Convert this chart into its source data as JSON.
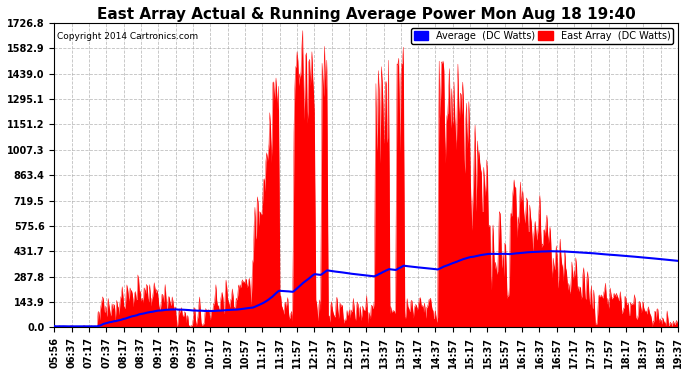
{
  "title": "East Array Actual & Running Average Power Mon Aug 18 19:40",
  "copyright": "Copyright 2014 Cartronics.com",
  "legend_avg": "Average  (DC Watts)",
  "legend_east": "East Array  (DC Watts)",
  "ymax": 1726.8,
  "yticks": [
    0.0,
    143.9,
    287.8,
    431.7,
    575.6,
    719.5,
    863.4,
    1007.3,
    1151.2,
    1295.1,
    1439.0,
    1582.9,
    1726.8
  ],
  "background_color": "#ffffff",
  "grid_color": "#b0b0b0",
  "fill_color": "#ff0000",
  "avg_line_color": "#0000ff",
  "title_fontsize": 11,
  "tick_fontsize": 7,
  "xtick_labels": [
    "05:56",
    "06:37",
    "07:17",
    "07:37",
    "08:17",
    "08:37",
    "09:17",
    "09:37",
    "09:57",
    "10:17",
    "10:37",
    "10:57",
    "11:17",
    "11:37",
    "11:57",
    "12:17",
    "12:37",
    "12:57",
    "13:17",
    "13:37",
    "13:57",
    "14:17",
    "14:37",
    "14:57",
    "15:17",
    "15:37",
    "15:57",
    "16:17",
    "16:37",
    "16:57",
    "17:17",
    "17:37",
    "17:57",
    "18:17",
    "18:37",
    "18:57",
    "19:37"
  ],
  "n_points": 800,
  "seed": 123
}
